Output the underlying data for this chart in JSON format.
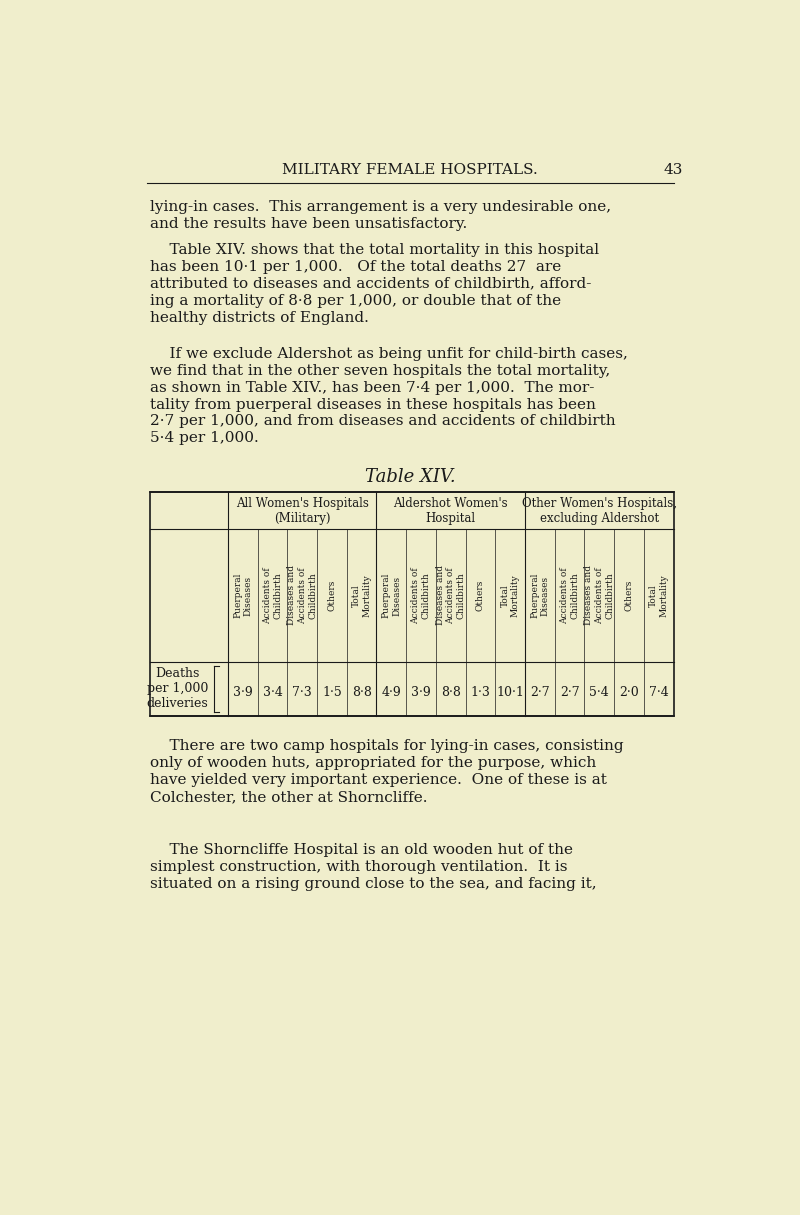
{
  "bg_color": "#f0eecc",
  "page_title": "MILITARY FEMALE HOSPITALS.",
  "page_number": "43",
  "paragraph1": "lying-in cases.  This arrangement is a very undesirable one,\nand the results have been unsatisfactory.",
  "paragraph2": "    Table XIV. shows that the total mortality in this hospital\nhas been 10·1 per 1,000.   Of the total deaths 27  are\nattributed to diseases and accidents of childbirth, afford-\ning a mortality of 8·8 per 1,000, or double that of the\nhealthy districts of England.",
  "paragraph3": "    If we exclude Aldershot as being unfit for child-birth cases,\nwe find that in the other seven hospitals the total mortality,\nas shown in Table XIV., has been 7·4 per 1,000.  The mor-\ntality from puerperal diseases in these hospitals has been\n2·7 per 1,000, and from diseases and accidents of childbirth\n5·4 per 1,000.",
  "table_title": "Table XIV.",
  "table_col_groups": [
    {
      "label": "All Women's Hospitals\n(Military)",
      "span": 5
    },
    {
      "label": "Aldershot Women's\nHospital",
      "span": 5
    },
    {
      "label": "Other Women's Hospitals,\nexcluding Aldershot",
      "span": 5
    }
  ],
  "table_sub_headers": [
    "Puerperal\nDiseases",
    "Accidents of\nChildbirth",
    "Diseases and\nAccidents of\nChildbirth",
    "Others",
    "Total\nMortality",
    "Puerperal\nDiseases",
    "Accidents of\nChildbirth",
    "Diseases and\nAccidents of\nChildbirth",
    "Others",
    "Total\nMortality",
    "Puerperal\nDiseases",
    "Accidents of\nChildbirth",
    "Diseases and\nAccidents of\nChildbirth",
    "Others",
    "Total\nMortality"
  ],
  "row_label": "Deaths\nper 1,000\ndeliveries",
  "row_values": [
    "3·9",
    "3·4",
    "7·3",
    "1·5",
    "8·8",
    "4·9",
    "3·9",
    "8·8",
    "1·3",
    "10·1",
    "2·7",
    "2·7",
    "5·4",
    "2·0",
    "7·4"
  ],
  "paragraph4": "    There are two camp hospitals for lying-in cases, consisting\nonly of wooden huts, appropriated for the purpose, which\nhave yielded very important experience.  One of these is at\nColchester, the other at Shorncliffe.",
  "paragraph5": "    The Shorncliffe Hospital is an old wooden hut of the\nsimplest construction, with thorough ventilation.  It is\nsituated on a rising ground close to the sea, and facing it,"
}
